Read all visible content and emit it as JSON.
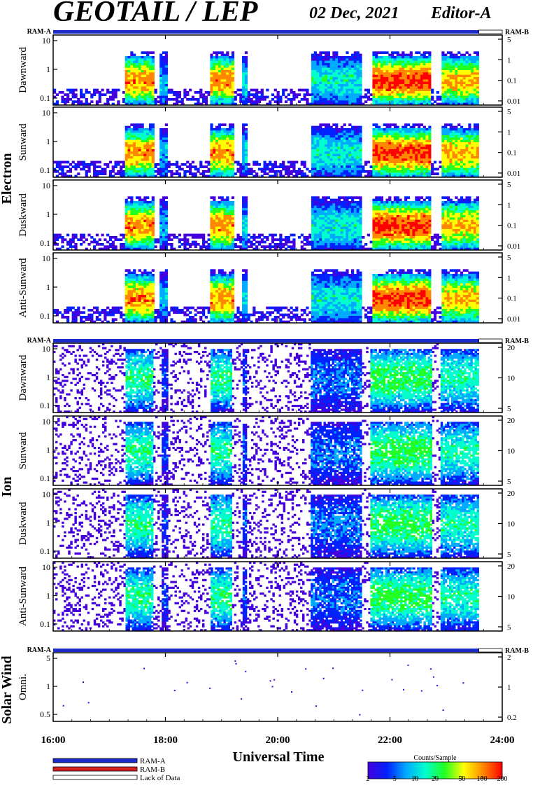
{
  "header": {
    "title": "GEOTAIL / LEP",
    "date": "02 Dec, 2021",
    "editor": "Editor-A"
  },
  "chart_data": {
    "type": "heatmap",
    "x_range": [
      "16:00",
      "24:00"
    ],
    "x_ticks": [
      "16:00",
      "18:00",
      "20:00",
      "22:00",
      "24:00"
    ],
    "xlabel": "Universal Time",
    "ram_labels": {
      "a": "RAM-A",
      "b": "RAM-B"
    },
    "ram_coverage_end": "23:35",
    "groups": [
      {
        "name": "Electron",
        "panels": [
          {
            "label": "Dawnward",
            "left_ticks": [
              "10",
              "1",
              "0.1"
            ],
            "right_ticks": [
              "5",
              "1",
              "0.1",
              "0.01"
            ]
          },
          {
            "label": "Sunward",
            "left_ticks": [
              "10",
              "1",
              "0.1"
            ],
            "right_ticks": [
              "5",
              "1",
              "0.1",
              "0.01"
            ]
          },
          {
            "label": "Duskward",
            "left_ticks": [
              "10",
              "1",
              "0.1"
            ],
            "right_ticks": [
              "5",
              "1",
              "0.1",
              "0.01"
            ]
          },
          {
            "label": "Anti-Sunward",
            "left_ticks": [
              "10",
              "1",
              "0.1"
            ],
            "right_ticks": [
              "5",
              "1",
              "0.1",
              "0.01"
            ]
          }
        ]
      },
      {
        "name": "Ion",
        "panels": [
          {
            "label": "Dawnward",
            "left_ticks": [
              "10",
              "1",
              "0.1"
            ],
            "right_ticks": [
              "20",
              "10",
              "5"
            ]
          },
          {
            "label": "Sunward",
            "left_ticks": [
              "10",
              "1",
              "0.1"
            ],
            "right_ticks": [
              "20",
              "10",
              "5"
            ]
          },
          {
            "label": "Duskward",
            "left_ticks": [
              "10",
              "1",
              "0.1"
            ],
            "right_ticks": [
              "20",
              "10",
              "5"
            ]
          },
          {
            "label": "Anti-Sunward",
            "left_ticks": [
              "10",
              "1",
              "0.1"
            ],
            "right_ticks": [
              "20",
              "10",
              "5"
            ]
          }
        ]
      },
      {
        "name": "Solar Wind",
        "panels": [
          {
            "label": "Omni.",
            "left_ticks": [
              "5",
              "1",
              "0.5"
            ],
            "right_ticks": [
              "2",
              "1",
              "0.2"
            ]
          }
        ]
      }
    ],
    "activity_intervals": [
      {
        "start": "17:18",
        "end": "17:48",
        "intensity": 0.85
      },
      {
        "start": "17:55",
        "end": "18:02",
        "intensity": 0.35
      },
      {
        "start": "18:48",
        "end": "19:12",
        "intensity": 0.85
      },
      {
        "start": "19:22",
        "end": "19:27",
        "intensity": 0.4
      },
      {
        "start": "20:35",
        "end": "21:30",
        "intensity": 0.45
      },
      {
        "start": "21:40",
        "end": "22:45",
        "intensity": 0.95
      },
      {
        "start": "22:55",
        "end": "23:35",
        "intensity": 0.8
      }
    ],
    "colorbar": {
      "title": "Counts/Sample",
      "ticks": [
        "2",
        "5",
        "10",
        "20",
        "50",
        "100",
        "200"
      ],
      "colors": [
        "#4400dd",
        "#0022ff",
        "#00aaff",
        "#00ffcc",
        "#22ff22",
        "#ffff00",
        "#ff8800",
        "#ff0000"
      ]
    },
    "legend": [
      {
        "label": "RAM-A",
        "color": "#1a2bc9"
      },
      {
        "label": "RAM-B",
        "color": "#d62020"
      },
      {
        "label": "Lack of Data",
        "color": "#ffffff"
      }
    ]
  }
}
